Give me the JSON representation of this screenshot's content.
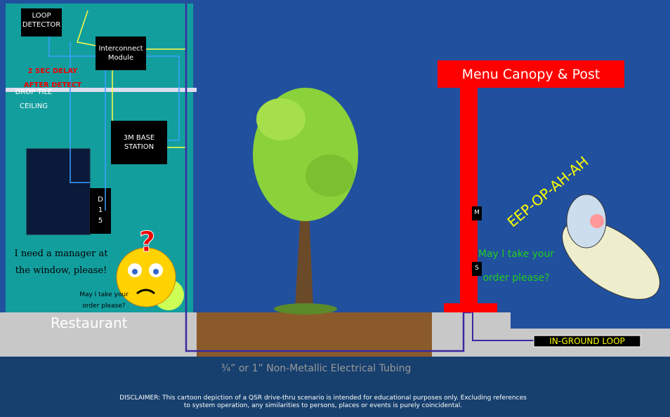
{
  "restaurant": {
    "loop_detector": "LOOP DETECTOR",
    "interconnect": "Interconnect Module",
    "delay": "2 SEC DELAY AFTER DETECT",
    "ceiling": "DROP TILE CEILING",
    "base_station": "3M BASE STATION",
    "d15": "D 1 5",
    "manager": "I need a manager at the window, please!",
    "small_order": "May I take your order please?",
    "label": "Restaurant"
  },
  "menu": {
    "canopy": "Menu Canopy & Post",
    "speaker_m": "M",
    "speaker_s": "S",
    "order": "May I take your order please?",
    "alien": "EEP-OP-AH-AH",
    "loop": "IN-GROUND LOOP"
  },
  "tubing": "¾” or 1” Non-Metallic Electrical Tubing",
  "disclaimer": "DISCLAIMER: This cartoon depiction of a QSR drive-thru scenario is intended for educational purposes only. Excluding references to system operation, any similarities to persons, places or events is purely coincidental."
}
